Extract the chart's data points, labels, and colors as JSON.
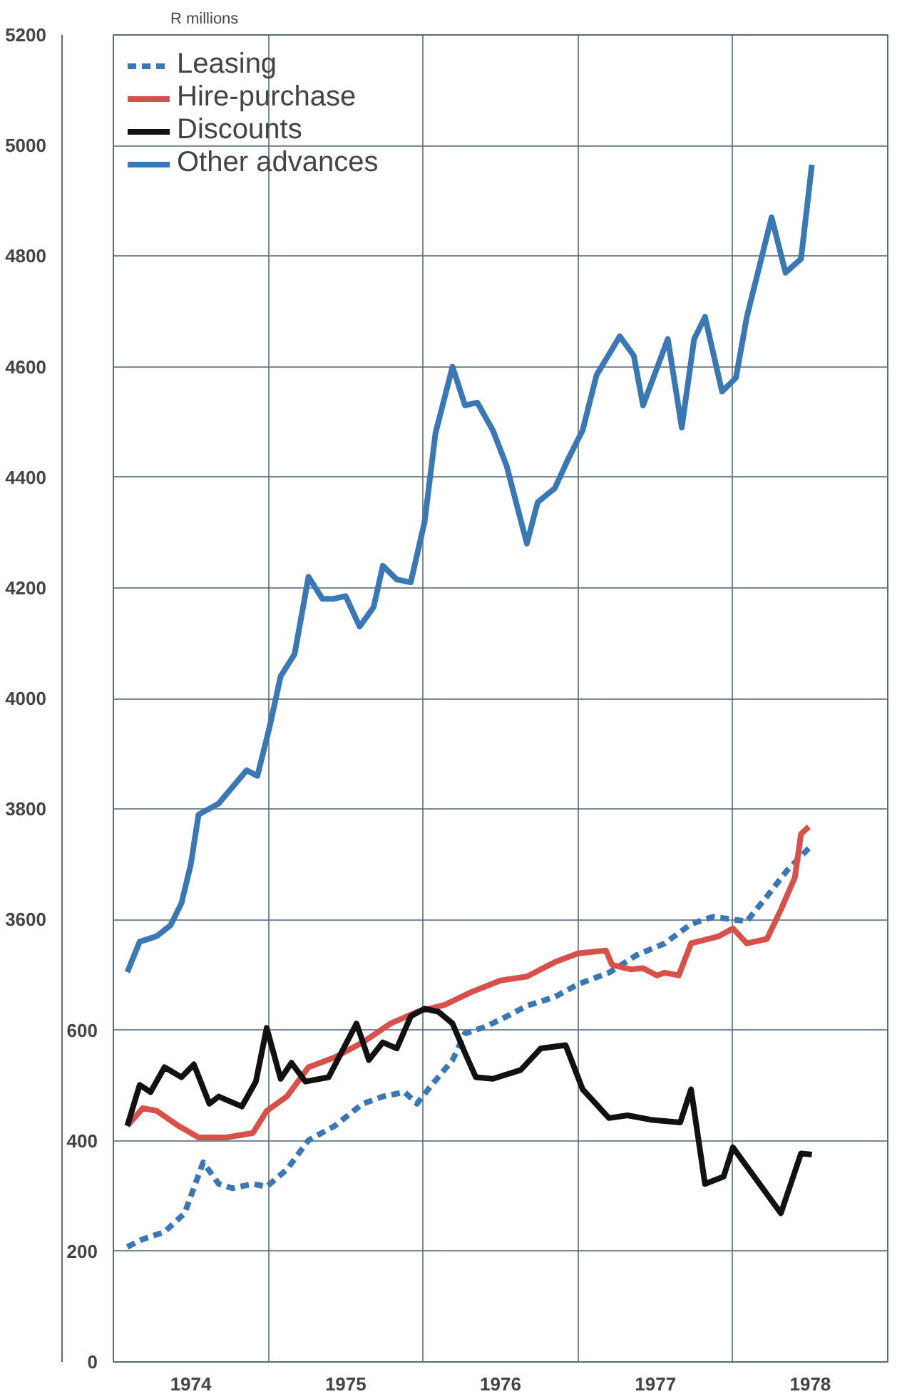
{
  "chart_data": {
    "type": "line",
    "title": "R millions",
    "xlim": [
      1974,
      1979
    ],
    "xticks": [
      {
        "value": 1974,
        "label": null
      },
      {
        "value": 1974.5,
        "label": "1974"
      },
      {
        "value": 1975,
        "label": null
      },
      {
        "value": 1975.5,
        "label": "1975"
      },
      {
        "value": 1976,
        "label": null
      },
      {
        "value": 1976.5,
        "label": "1976"
      },
      {
        "value": 1977,
        "label": null
      },
      {
        "value": 1977.5,
        "label": "1977"
      },
      {
        "value": 1978,
        "label": null
      },
      {
        "value": 1978.5,
        "label": "1978"
      },
      {
        "value": 1979,
        "label": null
      }
    ],
    "ylim": [
      0,
      2400
    ],
    "yticks": [
      0,
      200,
      400,
      600
    ],
    "y2lim": [
      2800,
      5200
    ],
    "y2ticks": [
      3600,
      3800,
      4000,
      4200,
      4400,
      4600,
      4800,
      5000,
      5200
    ],
    "grid": true,
    "legend": "top left",
    "series": [
      {
        "name": "Leasing",
        "color": "#3a78b5",
        "line_style": "dashed",
        "x": [
          1974.09,
          1974.19,
          1974.33,
          1974.46,
          1974.58,
          1974.68,
          1974.77,
          1974.9,
          1974.99,
          1975.12,
          1975.26,
          1975.43,
          1975.61,
          1975.74,
          1975.88,
          1975.96,
          1976.05,
          1976.19,
          1976.27,
          1976.41,
          1976.54,
          1976.67,
          1976.85,
          1977.0,
          1977.2,
          1977.38,
          1977.56,
          1977.73,
          1977.87,
          1978.09,
          1978.22,
          1978.35,
          1978.49
        ],
        "values": [
          208,
          222,
          235,
          269,
          361,
          322,
          314,
          322,
          317,
          348,
          401,
          427,
          467,
          480,
          488,
          467,
          499,
          546,
          594,
          607,
          625,
          644,
          660,
          683,
          704,
          736,
          757,
          792,
          805,
          797,
          842,
          889,
          929
        ]
      },
      {
        "name": "Hire-purchase",
        "color": "#d9504a",
        "line_style": "solid",
        "x": [
          1974.09,
          1974.19,
          1974.28,
          1974.42,
          1974.55,
          1974.73,
          1974.9,
          1974.99,
          1975.12,
          1975.26,
          1975.43,
          1975.61,
          1975.79,
          1975.96,
          1976.14,
          1976.32,
          1976.5,
          1976.67,
          1976.85,
          1977.0,
          1977.18,
          1977.22,
          1977.34,
          1977.42,
          1977.51,
          1977.56,
          1977.65,
          1977.73,
          1977.91,
          1978.0,
          1978.09,
          1978.22,
          1978.31,
          1978.4,
          1978.44,
          1978.49
        ],
        "values": [
          427,
          459,
          454,
          427,
          406,
          406,
          414,
          454,
          480,
          533,
          551,
          578,
          612,
          633,
          646,
          670,
          690,
          697,
          723,
          739,
          744,
          718,
          710,
          712,
          699,
          704,
          699,
          757,
          770,
          784,
          757,
          765,
          818,
          876,
          955,
          968
        ]
      },
      {
        "name": "Discounts",
        "color": "#111111",
        "line_style": "solid",
        "x": [
          1974.09,
          1974.17,
          1974.24,
          1974.33,
          1974.44,
          1974.52,
          1974.62,
          1974.68,
          1974.83,
          1974.92,
          1974.99,
          1975.08,
          1975.15,
          1975.24,
          1975.39,
          1975.57,
          1975.65,
          1975.74,
          1975.83,
          1975.92,
          1976.01,
          1976.1,
          1976.19,
          1976.27,
          1976.34,
          1976.45,
          1976.63,
          1976.76,
          1976.92,
          1977.03,
          1977.2,
          1977.32,
          1977.47,
          1977.66,
          1977.73,
          1977.82,
          1977.94,
          1978.0,
          1978.31,
          1978.44,
          1978.51
        ],
        "values": [
          427,
          501,
          488,
          533,
          515,
          538,
          467,
          480,
          462,
          507,
          604,
          512,
          541,
          507,
          515,
          612,
          546,
          578,
          567,
          625,
          639,
          633,
          612,
          559,
          515,
          512,
          528,
          567,
          573,
          493,
          441,
          446,
          438,
          433,
          493,
          322,
          335,
          388,
          269,
          377,
          375
        ]
      },
      {
        "name": "Other advances",
        "color": "#3a78b5",
        "line_style": "solid",
        "axis": "y2",
        "x": [
          1974.09,
          1974.17,
          1974.28,
          1974.37,
          1974.44,
          1974.5,
          1974.55,
          1974.68,
          1974.77,
          1974.86,
          1974.93,
          1975.01,
          1975.08,
          1975.17,
          1975.26,
          1975.35,
          1975.42,
          1975.5,
          1975.59,
          1975.68,
          1975.74,
          1975.83,
          1975.92,
          1976.01,
          1976.08,
          1976.19,
          1976.27,
          1976.35,
          1976.45,
          1976.54,
          1976.6,
          1976.67,
          1976.74,
          1976.85,
          1976.94,
          1977.03,
          1977.12,
          1977.27,
          1977.36,
          1977.42,
          1977.58,
          1977.67,
          1977.75,
          1977.82,
          1977.93,
          1978.02,
          1978.09,
          1978.25,
          1978.34,
          1978.44,
          1978.51
        ],
        "values": [
          3505,
          3560,
          3570,
          3590,
          3630,
          3700,
          3790,
          3810,
          3840,
          3870,
          3860,
          3950,
          4040,
          4080,
          4220,
          4180,
          4180,
          4185,
          4130,
          4165,
          4240,
          4215,
          4210,
          4320,
          4480,
          4600,
          4530,
          4535,
          4485,
          4420,
          4355,
          4280,
          4355,
          4380,
          4435,
          4485,
          4585,
          4655,
          4620,
          4530,
          4650,
          4490,
          4650,
          4690,
          4555,
          4580,
          4690,
          4870,
          4770,
          4795,
          4965
        ]
      }
    ]
  }
}
